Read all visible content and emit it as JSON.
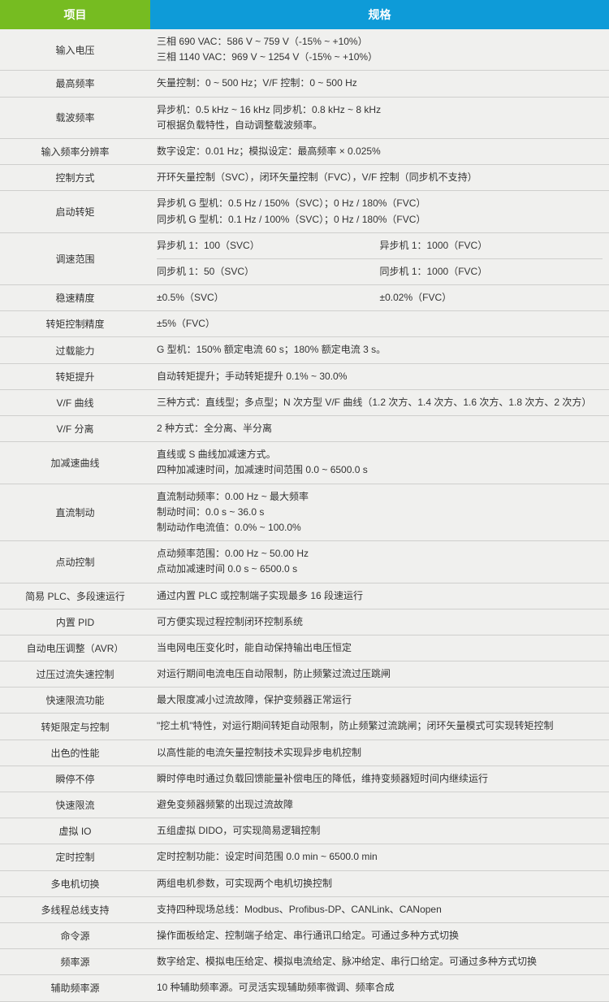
{
  "header": {
    "left": "项目",
    "right": "规格"
  },
  "background_color": "#f0f0ee",
  "header_left_bg": "#76bc21",
  "header_right_bg": "#0e9bd8",
  "border_color": "#cfcfcd",
  "rows": [
    {
      "label": "输入电压",
      "value": "三相 690 VAC：586 V ~ 759 V（-15% ~ +10%）\n三相 1140 VAC：969 V ~ 1254 V（-15% ~ +10%）"
    },
    {
      "label": "最高频率",
      "value": "矢量控制：0 ~ 500 Hz；V/F 控制：0 ~ 500 Hz"
    },
    {
      "label": "载波频率",
      "value": "异步机：0.5 kHz ~ 16 kHz   同步机：0.8 kHz ~ 8 kHz\n可根据负载特性，自动调整载波频率。"
    },
    {
      "label": "输入频率分辨率",
      "value": "数字设定：0.01 Hz；模拟设定：最高频率 × 0.025%"
    },
    {
      "label": "控制方式",
      "value": "开环矢量控制（SVC），闭环矢量控制（FVC），V/F 控制（同步机不支持）"
    },
    {
      "label": "启动转矩",
      "value": "异步机 G 型机：0.5 Hz / 150%（SVC）；0 Hz / 180%（FVC）\n同步机 G 型机：0.1 Hz / 100%（SVC）；0 Hz / 180%（FVC）"
    },
    {
      "label": "调速范围",
      "two_col": [
        [
          "异步机 1：100（SVC）",
          "异步机 1：1000（FVC）"
        ],
        [
          "同步机 1：50（SVC）",
          "同步机 1：1000（FVC）"
        ]
      ]
    },
    {
      "label": "稳速精度",
      "two_col": [
        [
          "±0.5%（SVC）",
          "±0.02%（FVC）"
        ]
      ]
    },
    {
      "label": "转矩控制精度",
      "value": "±5%（FVC）"
    },
    {
      "label": "过载能力",
      "value": "G 型机：150% 额定电流 60 s；180% 额定电流 3 s。"
    },
    {
      "label": "转矩提升",
      "value": "自动转矩提升；手动转矩提升 0.1% ~ 30.0%"
    },
    {
      "label": "V/F 曲线",
      "value": "三种方式：直线型；多点型；N 次方型 V/F 曲线（1.2 次方、1.4 次方、1.6 次方、1.8 次方、2 次方）"
    },
    {
      "label": "V/F 分离",
      "value": "2 种方式：全分离、半分离"
    },
    {
      "label": "加减速曲线",
      "value": "直线或 S 曲线加减速方式。\n四种加减速时间，加减速时间范围 0.0 ~ 6500.0 s"
    },
    {
      "label": "直流制动",
      "value": "直流制动频率：0.00 Hz ~ 最大频率\n制动时间：0.0 s ~ 36.0 s\n制动动作电流值：0.0% ~ 100.0%"
    },
    {
      "label": "点动控制",
      "value": "点动频率范围：0.00 Hz ~ 50.00 Hz\n点动加减速时间 0.0 s ~ 6500.0 s"
    },
    {
      "label": "简易 PLC、多段速运行",
      "value": "通过内置 PLC 或控制端子实现最多 16 段速运行"
    },
    {
      "label": "内置 PID",
      "value": "可方便实现过程控制闭环控制系统"
    },
    {
      "label": "自动电压调整（AVR）",
      "value": "当电网电压变化时，能自动保持输出电压恒定"
    },
    {
      "label": "过压过流失速控制",
      "value": "对运行期间电流电压自动限制，防止频繁过流过压跳闸"
    },
    {
      "label": "快速限流功能",
      "value": "最大限度减小过流故障，保护变频器正常运行"
    },
    {
      "label": "转矩限定与控制",
      "value": "\"挖土机\"特性，对运行期间转矩自动限制，防止频繁过流跳闸；闭环矢量模式可实现转矩控制"
    },
    {
      "label": "出色的性能",
      "value": "以高性能的电流矢量控制技术实现异步电机控制"
    },
    {
      "label": "瞬停不停",
      "value": "瞬时停电时通过负载回馈能量补偿电压的降低，维持变频器短时间内继续运行"
    },
    {
      "label": "快速限流",
      "value": "避免变频器频繁的出现过流故障"
    },
    {
      "label": "虚拟 IO",
      "value": "五组虚拟 DIDO，可实现简易逻辑控制"
    },
    {
      "label": "定时控制",
      "value": "定时控制功能：设定时间范围 0.0 min ~ 6500.0 min"
    },
    {
      "label": "多电机切换",
      "value": "两组电机参数，可实现两个电机切换控制"
    },
    {
      "label": "多线程总线支持",
      "value": "支持四种现场总线：Modbus、Profibus-DP、CANLink、CANopen"
    },
    {
      "label": "命令源",
      "value": "操作面板给定、控制端子给定、串行通讯口给定。可通过多种方式切换"
    },
    {
      "label": "频率源",
      "value": "数字给定、模拟电压给定、模拟电流给定、脉冲给定、串行口给定。可通过多种方式切换"
    },
    {
      "label": "辅助频率源",
      "value": "10 种辅助频率源。可灵活实现辅助频率微调、频率合成"
    }
  ]
}
